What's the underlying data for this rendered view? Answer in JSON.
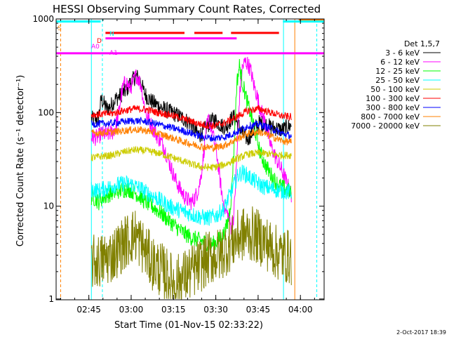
{
  "chart_data": {
    "type": "line",
    "title": "HESSI Observing Summary Count Rates, Corrected",
    "xlabel": "Start Time (01-Nov-15 02:33:22)",
    "ylabel": "Corrected Count Rate (s⁻¹ detector⁻¹)",
    "ylog": true,
    "ylim": [
      1,
      1000
    ],
    "xlim_minutes_since_start": [
      0,
      95
    ],
    "x_ticks": [
      {
        "label": "02:45",
        "minute": 11.6
      },
      {
        "label": "03:00",
        "minute": 26.6
      },
      {
        "label": "03:15",
        "minute": 41.6
      },
      {
        "label": "03:30",
        "minute": 56.6
      },
      {
        "label": "03:45",
        "minute": 71.6
      },
      {
        "label": "04:00",
        "minute": 86.6
      }
    ],
    "y_ticks": [
      {
        "label": "1",
        "value": 1
      },
      {
        "label": "10",
        "value": 10
      },
      {
        "label": "100",
        "value": 100
      },
      {
        "label": "1000",
        "value": 1000
      }
    ],
    "legend_title": "Det 1,5,7",
    "legend_placement": "right",
    "series": [
      {
        "name": "3 - 6 keV",
        "color": "#000000",
        "x": [
          12.5,
          14,
          15,
          16,
          18,
          19,
          20,
          21,
          22,
          23,
          24,
          25,
          26,
          27,
          28,
          28.5,
          29,
          30,
          30.5,
          31,
          32,
          34,
          36,
          38,
          40,
          42,
          44,
          46,
          48,
          49,
          50,
          51,
          52,
          53,
          54,
          55,
          56,
          57,
          58,
          59,
          60,
          61,
          62,
          63,
          64,
          65,
          66,
          67,
          68,
          69,
          70,
          71,
          72,
          74,
          76,
          78,
          80,
          82,
          83,
          83.5
        ],
        "y": [
          85,
          86,
          88,
          140,
          110,
          115,
          125,
          140,
          145,
          155,
          165,
          175,
          200,
          220,
          240,
          245,
          235,
          215,
          190,
          170,
          150,
          130,
          120,
          110,
          103,
          97,
          90,
          83,
          75,
          68,
          60,
          58,
          62,
          68,
          75,
          80,
          85,
          80,
          75,
          72,
          70,
          75,
          85,
          90,
          80,
          70,
          60,
          55,
          52,
          58,
          65,
          72,
          78,
          75,
          70,
          68,
          65,
          70,
          72,
          75
        ]
      },
      {
        "name": "6 - 12 keV",
        "color": "#ff00ff",
        "x": [
          12.5,
          14,
          15,
          16,
          18,
          19,
          20,
          21,
          22,
          23,
          24,
          25,
          26,
          27,
          28,
          28.5,
          29,
          30,
          30.5,
          31,
          32,
          34,
          36,
          38,
          40,
          42,
          44,
          46,
          48,
          49,
          50,
          51,
          52,
          53,
          54,
          55,
          56,
          57,
          58,
          59,
          60,
          61,
          62,
          63,
          64,
          65,
          66,
          67,
          68,
          69,
          70,
          71,
          72,
          74,
          76,
          78,
          80,
          82,
          83,
          83.5
        ],
        "y": [
          55,
          54,
          55,
          60,
          58,
          60,
          62,
          70,
          90,
          150,
          200,
          210,
          180,
          200,
          240,
          250,
          235,
          200,
          170,
          130,
          95,
          70,
          55,
          45,
          30,
          20,
          15,
          12,
          11,
          12,
          14,
          18,
          30,
          60,
          85,
          70,
          50,
          35,
          20,
          12,
          9,
          8,
          6,
          8,
          30,
          150,
          300,
          350,
          330,
          280,
          200,
          160,
          120,
          80,
          45,
          32,
          24,
          17,
          14,
          11
        ]
      },
      {
        "name": "12 - 25 keV",
        "color": "#00ff00",
        "x": [
          12.5,
          14,
          15,
          16,
          18,
          19,
          20,
          21,
          22,
          23,
          24,
          25,
          26,
          27,
          28,
          28.5,
          29,
          30,
          30.5,
          31,
          32,
          34,
          36,
          38,
          40,
          42,
          44,
          46,
          48,
          49,
          50,
          51,
          52,
          53,
          54,
          55,
          56,
          57,
          58,
          59,
          60,
          61,
          62,
          63,
          64,
          65,
          66,
          67,
          68,
          69,
          70,
          71,
          72,
          74,
          76,
          78,
          80,
          82,
          83,
          83.5
        ],
        "y": [
          12.5,
          12,
          11,
          12,
          13,
          13.5,
          14,
          14,
          14.5,
          14.8,
          15,
          15.2,
          15,
          14.5,
          14,
          13.5,
          13,
          12.5,
          12,
          11.5,
          11,
          10,
          9,
          8,
          7,
          6.2,
          5.5,
          5,
          4.6,
          4.5,
          4.4,
          4.3,
          4.2,
          4.1,
          4,
          3.9,
          4,
          4.2,
          4.5,
          4.8,
          5.5,
          7,
          12,
          40,
          200,
          320,
          210,
          160,
          120,
          95,
          75,
          55,
          40,
          28,
          22,
          18,
          16,
          15,
          14,
          13
        ]
      },
      {
        "name": "25 - 50 keV",
        "color": "#00ffff",
        "x": [
          12.5,
          14,
          15,
          16,
          18,
          19,
          20,
          21,
          22,
          23,
          24,
          25,
          26,
          27,
          28,
          28.5,
          29,
          30,
          30.5,
          31,
          32,
          34,
          36,
          38,
          40,
          42,
          44,
          46,
          48,
          49,
          50,
          51,
          52,
          53,
          54,
          55,
          56,
          57,
          58,
          59,
          60,
          61,
          62,
          63,
          64,
          65,
          66,
          67,
          68,
          69,
          70,
          71,
          72,
          74,
          76,
          78,
          80,
          82,
          83,
          83.5
        ],
        "y": [
          15,
          15,
          14.5,
          15,
          15.5,
          16,
          16.5,
          16.8,
          17,
          17.2,
          17.5,
          17.5,
          17.2,
          17,
          16.5,
          16,
          15.8,
          15.5,
          15,
          14.5,
          14,
          13,
          12,
          11,
          10,
          9.5,
          9,
          8.6,
          8.2,
          8,
          7.8,
          7.7,
          7.6,
          7.5,
          7.5,
          7.6,
          7.8,
          8,
          8.5,
          9,
          10,
          12,
          14,
          17,
          20,
          22,
          23,
          22,
          21,
          20,
          19,
          18,
          17,
          16,
          15.5,
          15,
          14.5,
          14.2,
          14,
          14
        ]
      },
      {
        "name": "50 - 100 keV",
        "color": "#cccc00",
        "x": [
          12.5,
          16,
          20,
          24,
          28,
          32,
          36,
          40,
          44,
          48,
          52,
          56,
          60,
          64,
          68,
          72,
          76,
          80,
          83.5
        ],
        "y": [
          33,
          34,
          35,
          38,
          40,
          39,
          37,
          34,
          31,
          28,
          26,
          26,
          28,
          32,
          36,
          37,
          36,
          35,
          35
        ]
      },
      {
        "name": "100 - 300 keV",
        "color": "#ff0000",
        "x": [
          12.5,
          16,
          20,
          24,
          28,
          32,
          36,
          40,
          44,
          48,
          52,
          56,
          60,
          64,
          68,
          72,
          76,
          80,
          83.5
        ],
        "y": [
          95,
          96,
          98,
          105,
          110,
          108,
          100,
          95,
          88,
          80,
          74,
          72,
          78,
          90,
          105,
          110,
          100,
          92,
          90
        ]
      },
      {
        "name": "300 - 800 keV",
        "color": "#0000ff",
        "x": [
          12.5,
          16,
          20,
          24,
          28,
          32,
          36,
          40,
          44,
          48,
          52,
          56,
          60,
          64,
          68,
          72,
          76,
          80,
          83.5
        ],
        "y": [
          75,
          76,
          77,
          80,
          82,
          80,
          75,
          70,
          65,
          60,
          55,
          53,
          55,
          62,
          72,
          75,
          68,
          60,
          56
        ]
      },
      {
        "name": "800 - 7000 keV",
        "color": "#ff8000",
        "x": [
          12.5,
          16,
          20,
          24,
          28,
          32,
          36,
          40,
          44,
          48,
          52,
          56,
          60,
          64,
          68,
          72,
          76,
          80,
          83.5
        ],
        "y": [
          60,
          61,
          62,
          64,
          66,
          64,
          60,
          55,
          50,
          46,
          43,
          42,
          45,
          52,
          60,
          62,
          56,
          50,
          48
        ]
      },
      {
        "name": "7000 - 20000 keV",
        "color": "#808000",
        "x": [
          12.5,
          16,
          20,
          24,
          26,
          28,
          30,
          34,
          38,
          42,
          46,
          50,
          54,
          58,
          60,
          62,
          64,
          66,
          70,
          74,
          78,
          83.5
        ],
        "y": [
          2.5,
          2.6,
          3,
          4,
          4.5,
          5,
          4,
          2.5,
          2,
          1.5,
          1.8,
          2.2,
          2.8,
          3,
          3.5,
          4,
          4.5,
          5,
          5,
          4.2,
          3.2,
          2.8
        ]
      }
    ],
    "flag_bars": [
      {
        "label": "N",
        "color": "#00ffff",
        "rows": [
          {
            "y": 940,
            "from": -1,
            "to": 15.8
          },
          {
            "y": 940,
            "from": 80.4,
            "to": 95
          }
        ]
      },
      {
        "label": "",
        "color": "#ff8000",
        "rows": [
          {
            "y": 990,
            "from": 86,
            "to": 95
          }
        ]
      },
      {
        "label": "D",
        "color": "#ff0000",
        "rows": [
          {
            "y": 710,
            "from": 17.5,
            "to": 45.5
          },
          {
            "y": 710,
            "from": 49,
            "to": 59
          },
          {
            "y": 710,
            "from": 62,
            "to": 79
          }
        ]
      },
      {
        "label": "A0",
        "color": "#ff00ff",
        "rows": [
          {
            "y": 620,
            "from": 17.5,
            "to": 64
          }
        ]
      },
      {
        "label": "A1",
        "color": "#ff00ff",
        "rows": [
          {
            "y": 430,
            "from": -1,
            "to": 95
          }
        ]
      }
    ],
    "flag_vlines": [
      {
        "minute": 0,
        "color": "#00ffff",
        "style": "solid"
      },
      {
        "minute": 1.6,
        "color": "#ff8000",
        "style": "dashed"
      },
      {
        "minute": 12.5,
        "color": "#00ffff",
        "style": "solid"
      },
      {
        "minute": 16.4,
        "color": "#00ffff",
        "style": "dashed"
      },
      {
        "minute": 80.6,
        "color": "#00ffff",
        "style": "solid"
      },
      {
        "minute": 84.6,
        "color": "#ff8000",
        "style": "solid"
      },
      {
        "minute": 92.4,
        "color": "#00ffff",
        "style": "dashed"
      }
    ],
    "annotation_labels": [
      {
        "text": "S",
        "color": "#ff8000"
      },
      {
        "text": "N",
        "color": "#00ffff"
      },
      {
        "text": "D",
        "color": "#ff0000"
      },
      {
        "text": "A0",
        "color": "#ff00ff"
      },
      {
        "text": "A1",
        "color": "#ff00ff"
      }
    ],
    "footer_date": "2-Oct-2017 18:39"
  }
}
